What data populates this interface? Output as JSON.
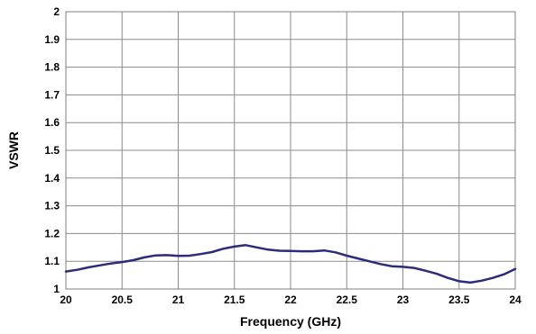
{
  "chart_data": {
    "type": "line",
    "title": "",
    "xlabel": "Frequency (GHz)",
    "ylabel": "VSWR",
    "xlim": [
      20,
      24
    ],
    "ylim": [
      1,
      2
    ],
    "x_ticks": [
      "20",
      "20.5",
      "21",
      "21.5",
      "22",
      "22.5",
      "23",
      "23.5",
      "24"
    ],
    "y_ticks": [
      "1",
      "1.1",
      "1.2",
      "1.3",
      "1.4",
      "1.5",
      "1.6",
      "1.7",
      "1.8",
      "1.9",
      "2"
    ],
    "grid": true,
    "legend": "none",
    "series": [
      {
        "color": "#2b2c7a",
        "x": [
          20.0,
          20.1,
          20.2,
          20.3,
          20.4,
          20.5,
          20.6,
          20.7,
          20.8,
          20.9,
          21.0,
          21.1,
          21.2,
          21.3,
          21.4,
          21.5,
          21.6,
          21.7,
          21.8,
          21.9,
          22.0,
          22.1,
          22.2,
          22.3,
          22.4,
          22.5,
          22.6,
          22.7,
          22.8,
          22.9,
          23.0,
          23.1,
          23.2,
          23.3,
          23.4,
          23.5,
          23.6,
          23.7,
          23.8,
          23.9,
          24.0
        ],
        "y": [
          1.063,
          1.069,
          1.078,
          1.085,
          1.092,
          1.097,
          1.104,
          1.114,
          1.121,
          1.122,
          1.119,
          1.12,
          1.126,
          1.133,
          1.145,
          1.153,
          1.158,
          1.15,
          1.142,
          1.138,
          1.137,
          1.136,
          1.136,
          1.139,
          1.132,
          1.12,
          1.11,
          1.1,
          1.09,
          1.082,
          1.08,
          1.076,
          1.066,
          1.055,
          1.04,
          1.028,
          1.023,
          1.03,
          1.04,
          1.053,
          1.072
        ]
      }
    ]
  }
}
